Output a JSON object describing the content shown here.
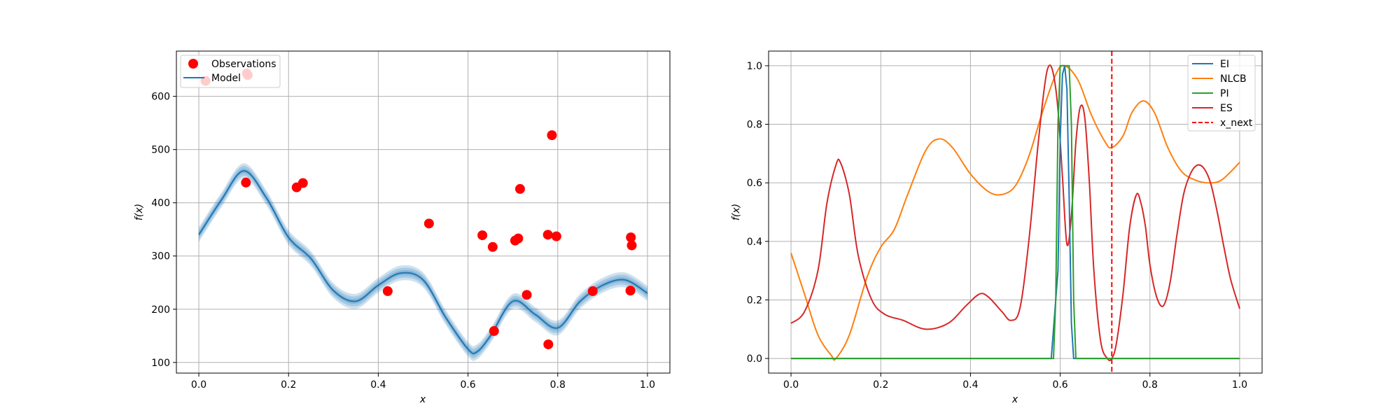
{
  "chart_data": [
    {
      "type": "scatter",
      "xlabel": "x",
      "ylabel": "f(x)",
      "xlim": [
        -0.05,
        1.05
      ],
      "ylim": [
        80,
        685
      ],
      "xticks": [
        "0.0",
        "0.2",
        "0.4",
        "0.6",
        "0.8",
        "1.0"
      ],
      "yticks": [
        "100",
        "200",
        "300",
        "400",
        "500",
        "600"
      ],
      "grid": true,
      "legend_position": "top-left",
      "legend": [
        "Observations",
        "Model"
      ],
      "colors": {
        "observations": "#ff0000",
        "model": "#1f77b4"
      },
      "observations": {
        "name": "Observations",
        "x": [
          0.015,
          0.107,
          0.109,
          0.105,
          0.218,
          0.232,
          0.421,
          0.513,
          0.632,
          0.655,
          0.658,
          0.705,
          0.712,
          0.716,
          0.731,
          0.778,
          0.779,
          0.787,
          0.797,
          0.878,
          0.962,
          0.963,
          0.965
        ],
        "y": [
          629,
          643,
          640,
          438,
          429,
          437,
          234,
          361,
          339,
          317,
          159,
          329,
          333,
          426,
          227,
          340,
          134,
          527,
          337,
          234,
          235,
          335,
          320
        ]
      },
      "model": {
        "name": "Model",
        "x": [
          0.0,
          0.05,
          0.1,
          0.15,
          0.2,
          0.25,
          0.3,
          0.35,
          0.4,
          0.45,
          0.5,
          0.55,
          0.6,
          0.62,
          0.65,
          0.7,
          0.75,
          0.8,
          0.85,
          0.9,
          0.95,
          1.0
        ],
        "mean": [
          340,
          405,
          460,
          410,
          335,
          295,
          235,
          215,
          245,
          268,
          255,
          185,
          125,
          120,
          150,
          215,
          190,
          165,
          215,
          245,
          255,
          230
        ],
        "band": 14
      }
    },
    {
      "type": "line",
      "xlabel": "x",
      "ylabel": "f(x)",
      "xlim": [
        -0.05,
        1.05
      ],
      "ylim": [
        -0.05,
        1.05
      ],
      "xticks": [
        "0.0",
        "0.2",
        "0.4",
        "0.6",
        "0.8",
        "1.0"
      ],
      "yticks": [
        "0.0",
        "0.2",
        "0.4",
        "0.6",
        "0.8",
        "1.0"
      ],
      "grid": true,
      "legend_position": "top-right",
      "legend": [
        "EI",
        "NLCB",
        "PI",
        "ES",
        "x_next"
      ],
      "x_next": 0.715,
      "series": [
        {
          "name": "EI",
          "color": "#1f77b4",
          "x": [
            0.0,
            0.58,
            0.595,
            0.6,
            0.605,
            0.61,
            0.615,
            0.62,
            0.625,
            0.63,
            1.0
          ],
          "y": [
            0,
            0,
            0.3,
            0.75,
            0.97,
            1.0,
            0.92,
            0.55,
            0.12,
            0,
            0
          ]
        },
        {
          "name": "NLCB",
          "color": "#ff7f0e",
          "x": [
            0.0,
            0.03,
            0.06,
            0.09,
            0.1,
            0.13,
            0.17,
            0.2,
            0.23,
            0.26,
            0.3,
            0.33,
            0.36,
            0.4,
            0.44,
            0.47,
            0.5,
            0.53,
            0.56,
            0.59,
            0.61,
            0.64,
            0.67,
            0.7,
            0.715,
            0.74,
            0.76,
            0.785,
            0.81,
            0.84,
            0.87,
            0.9,
            0.93,
            0.96,
            1.0
          ],
          "y": [
            0.36,
            0.22,
            0.08,
            0.01,
            0.0,
            0.08,
            0.28,
            0.38,
            0.44,
            0.56,
            0.71,
            0.75,
            0.72,
            0.63,
            0.57,
            0.56,
            0.59,
            0.69,
            0.84,
            0.97,
            1.0,
            0.95,
            0.83,
            0.74,
            0.72,
            0.76,
            0.84,
            0.88,
            0.84,
            0.72,
            0.64,
            0.61,
            0.6,
            0.61,
            0.67
          ]
        },
        {
          "name": "PI",
          "color": "#2ca02c",
          "x": [
            0.0,
            0.585,
            0.59,
            0.595,
            0.6,
            0.62,
            0.625,
            0.63,
            0.635,
            1.0
          ],
          "y": [
            0,
            0,
            0.2,
            0.8,
            1.0,
            1.0,
            0.8,
            0.2,
            0,
            0
          ]
        },
        {
          "name": "ES",
          "color": "#d62728",
          "x": [
            0.0,
            0.03,
            0.06,
            0.08,
            0.1,
            0.11,
            0.13,
            0.15,
            0.18,
            0.21,
            0.25,
            0.3,
            0.35,
            0.39,
            0.42,
            0.44,
            0.47,
            0.49,
            0.51,
            0.53,
            0.55,
            0.565,
            0.575,
            0.585,
            0.595,
            0.605,
            0.615,
            0.625,
            0.635,
            0.645,
            0.655,
            0.665,
            0.675,
            0.69,
            0.705,
            0.715,
            0.725,
            0.74,
            0.755,
            0.77,
            0.78,
            0.79,
            0.8,
            0.815,
            0.83,
            0.845,
            0.86,
            0.875,
            0.89,
            0.905,
            0.92,
            0.935,
            0.95,
            0.965,
            0.98,
            1.0
          ],
          "y": [
            0.12,
            0.16,
            0.3,
            0.53,
            0.66,
            0.67,
            0.56,
            0.35,
            0.2,
            0.15,
            0.13,
            0.1,
            0.12,
            0.18,
            0.22,
            0.21,
            0.16,
            0.13,
            0.17,
            0.4,
            0.72,
            0.93,
            1.0,
            0.97,
            0.85,
            0.62,
            0.39,
            0.49,
            0.74,
            0.86,
            0.82,
            0.6,
            0.3,
            0.06,
            0.0,
            0.0,
            0.05,
            0.22,
            0.45,
            0.56,
            0.53,
            0.45,
            0.32,
            0.21,
            0.18,
            0.26,
            0.42,
            0.56,
            0.63,
            0.66,
            0.65,
            0.6,
            0.5,
            0.38,
            0.27,
            0.17
          ]
        }
      ]
    }
  ]
}
